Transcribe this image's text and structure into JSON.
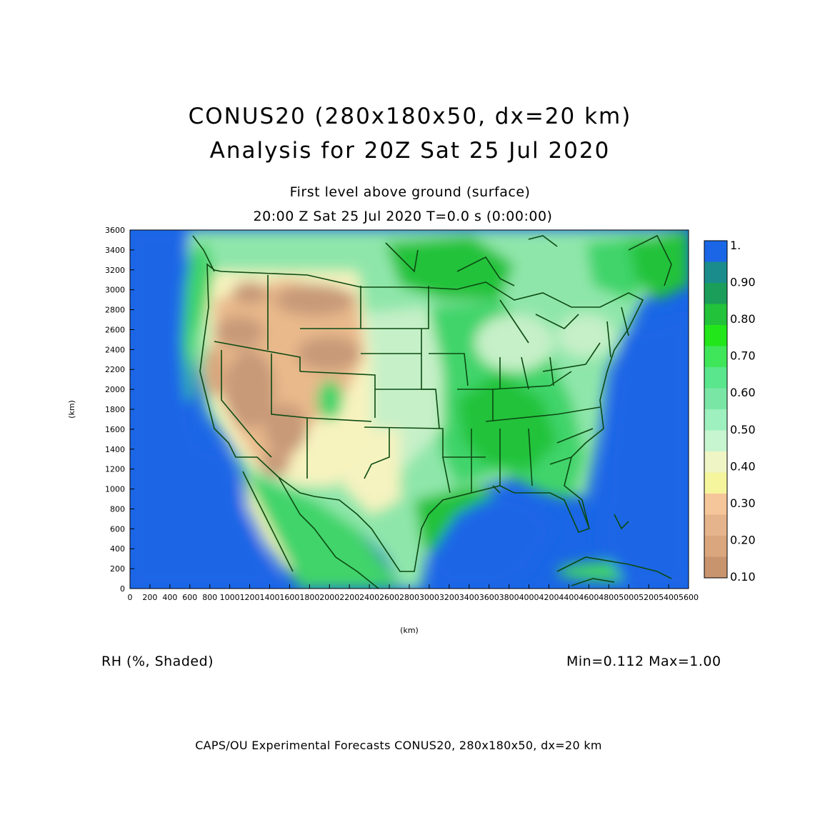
{
  "header": {
    "title_line1": "CONUS20 (280x180x50, dx=20 km)",
    "title_line2": "Analysis for 20Z Sat 25 Jul 2020",
    "subtitle_line1": "First level above ground (surface)",
    "subtitle_line2": "20:00 Z Sat 25 Jul 2020    T=0.0 s (0:00:00)"
  },
  "field": {
    "label": "RH (%, Shaded)",
    "minmax": "Min=0.112  Max=1.00"
  },
  "footer": {
    "text": "CAPS/OU Experimental Forecasts  CONUS20, 280x180x50, dx=20 km"
  },
  "map": {
    "x_axis_label": "(km)",
    "y_axis_label": "(km)",
    "x_range_km": [
      0,
      5600
    ],
    "y_range_km": [
      0,
      3600
    ],
    "x_ticks": [
      "0",
      "200",
      "400",
      "600",
      "800",
      "1000",
      "1200",
      "1400",
      "1600",
      "1800",
      "2000",
      "2200",
      "2400",
      "2600",
      "2800",
      "3000",
      "3200",
      "3400",
      "3600",
      "3800",
      "4000",
      "4200",
      "4400",
      "4600",
      "4800",
      "5000",
      "5200",
      "5400",
      "5600"
    ],
    "y_ticks": [
      "0",
      "200",
      "400",
      "600",
      "800",
      "1000",
      "1200",
      "1400",
      "1600",
      "1800",
      "2000",
      "2200",
      "2400",
      "2600",
      "2800",
      "3000",
      "3200",
      "3400",
      "3600"
    ],
    "colors": {
      "ocean": "#1a66e6",
      "border_line": "#0c4a12",
      "dry_brown": "#c89a78",
      "tan": "#e9b98c",
      "light_yellow": "#f7f3bf",
      "pale_green": "#c6f0c8",
      "mint": "#95e8b0",
      "green": "#3fd46a",
      "bright_green": "#16c23a"
    }
  },
  "colorbar": {
    "levels": [
      "1.",
      "0.90",
      "0.80",
      "0.70",
      "0.60",
      "0.50",
      "0.40",
      "0.30",
      "0.20",
      "0.10"
    ],
    "colors": [
      "#1a66e6",
      "#1a8c8c",
      "#1a9e5a",
      "#22c23a",
      "#22e61a",
      "#3fe65a",
      "#5ae68c",
      "#7ae6a6",
      "#9ef0be",
      "#c6f5d0",
      "#f0f5c6",
      "#f5f59e",
      "#f5c699",
      "#e6b48c",
      "#d9a67e",
      "#c8946e"
    ]
  }
}
